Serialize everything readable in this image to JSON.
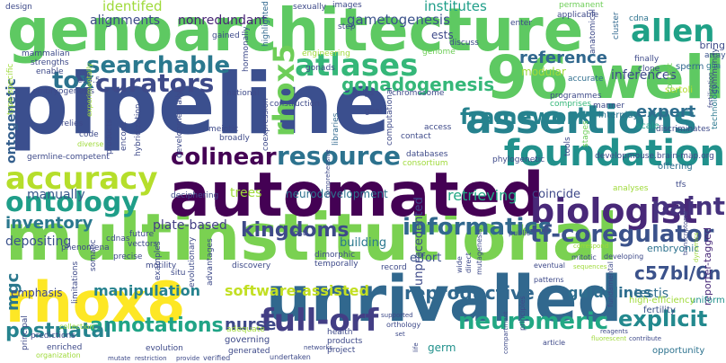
{
  "words": [
    {
      "text": "pipeline",
      "color": "#3b4f8e"
    },
    {
      "text": "multinstitutional",
      "color": "#7ad151"
    },
    {
      "text": "genoarchitecture",
      "color": "#5ec962"
    },
    {
      "text": "automated",
      "color": "#440154"
    },
    {
      "text": "unrivalled",
      "color": "#31688e"
    },
    {
      "text": "96 well",
      "color": "#5ec962"
    },
    {
      "text": "rhox8",
      "color": "#fde725"
    },
    {
      "text": "assertions",
      "color": "#26828e"
    },
    {
      "text": "foundation",
      "color": "#21918c"
    },
    {
      "text": "accuracy",
      "color": "#b5de2b"
    },
    {
      "text": "ontology",
      "color": "#1f9e89"
    },
    {
      "text": "biologist",
      "color": "#482878"
    },
    {
      "text": "allen",
      "color": "#1fa187"
    },
    {
      "text": "atlases",
      "color": "#35b779"
    },
    {
      "text": "searchable",
      "color": "#2a788e"
    },
    {
      "text": "curators",
      "color": "#3e4a89"
    },
    {
      "text": "rhox5",
      "color": "#6ece58"
    },
    {
      "text": "tox",
      "color": "#2c728e"
    },
    {
      "text": "resource",
      "color": "#2c728e"
    },
    {
      "text": "framework",
      "color": "#26828e"
    },
    {
      "text": "colinear",
      "color": "#440154"
    },
    {
      "text": "paint",
      "color": "#46327e"
    },
    {
      "text": "kingdoms",
      "color": "#3e4a89"
    },
    {
      "text": "informatics",
      "color": "#31688e"
    },
    {
      "text": "tf-coregulator",
      "color": "#3b528b"
    },
    {
      "text": "full-orf",
      "color": "#433e85"
    },
    {
      "text": "neuromeric",
      "color": "#22a884"
    },
    {
      "text": "explicit",
      "color": "#23898e"
    },
    {
      "text": "annotations",
      "color": "#20a486"
    },
    {
      "text": "nurse",
      "color": "#3e4989"
    },
    {
      "text": "postnatal",
      "color": "#25838e"
    },
    {
      "text": "manipulation",
      "color": "#26828e"
    },
    {
      "text": "software-assisted",
      "color": "#c2df23"
    },
    {
      "text": "mgc",
      "color": "#2a788e"
    },
    {
      "text": "reproductive",
      "color": "#31688e"
    },
    {
      "text": "guidelines",
      "color": "#2e6e8e"
    },
    {
      "text": "c57bl/6n",
      "color": "#3b528b"
    },
    {
      "text": "identifed",
      "color": "#9fda3a"
    },
    {
      "text": "alignments",
      "color": "#3e4a89"
    },
    {
      "text": "nonredundant",
      "color": "#482475"
    },
    {
      "text": "gametogenesis",
      "color": "#3b528b"
    },
    {
      "text": "institutes",
      "color": "#1f9e89"
    },
    {
      "text": "gonadogenesis",
      "color": "#35b779"
    },
    {
      "text": "reference",
      "color": "#31688e"
    },
    {
      "text": "inferences",
      "color": "#3e4a89"
    },
    {
      "text": "expert",
      "color": "#2e6e8e"
    },
    {
      "text": "ontogenetic",
      "color": "#355f8d"
    },
    {
      "text": "manually",
      "color": "#38598c"
    },
    {
      "text": "inventory",
      "color": "#2a788e"
    },
    {
      "text": "depositing",
      "color": "#3b528b"
    },
    {
      "text": "plate-based",
      "color": "#433e85"
    },
    {
      "text": "retrieving",
      "color": "#22a884"
    },
    {
      "text": "coincide",
      "color": "#3e4989"
    },
    {
      "text": "trees",
      "color": "#9fda3a"
    },
    {
      "text": "neurodevelopment",
      "color": "#2c728e"
    },
    {
      "text": "unprecedented",
      "color": "#3e4a89"
    },
    {
      "text": "building",
      "color": "#2a788e"
    },
    {
      "text": "effort",
      "color": "#3b528b"
    },
    {
      "text": "emphasis",
      "color": "#3e4989"
    },
    {
      "text": "testis",
      "color": "#2e6e8e"
    },
    {
      "text": "modular",
      "color": "#9fda3a"
    },
    {
      "text": "ests",
      "color": "#3e4a89"
    },
    {
      "text": "germ",
      "color": "#21918c"
    },
    {
      "text": "embryonic",
      "color": "#2c728e"
    },
    {
      "text": "reporter-tagged",
      "color": "#482878"
    },
    {
      "text": "uniform",
      "color": "#21918c"
    },
    {
      "text": "fertility",
      "color": "#3b528b"
    },
    {
      "text": "high-efficiency",
      "color": "#9fda3a"
    },
    {
      "text": "opportunity",
      "color": "#2c728e"
    },
    {
      "text": "bring",
      "color": "#3e4a89"
    },
    {
      "text": "array",
      "color": "#3b528b"
    },
    {
      "text": "glia",
      "color": "#2c728e"
    },
    {
      "text": "sperm",
      "color": "#31688e"
    },
    {
      "text": "sertoli",
      "color": "#b5de2b"
    },
    {
      "text": "technology",
      "color": "#2a788e"
    },
    {
      "text": "community",
      "color": "#3e4a89"
    },
    {
      "text": "developmouse.brain-map.org",
      "color": "#3e4a89"
    },
    {
      "text": "offering",
      "color": "#2e6e8e"
    },
    {
      "text": "discriminates",
      "color": "#3e4a89"
    },
    {
      "text": "interplay",
      "color": "#2c728e"
    },
    {
      "text": "scale",
      "color": "#1f9e89"
    },
    {
      "text": "programmes",
      "color": "#3e4a89"
    },
    {
      "text": "comprises",
      "color": "#35b779"
    },
    {
      "text": "accurate",
      "color": "#2e6e8e"
    },
    {
      "text": "finally",
      "color": "#3e4a89"
    },
    {
      "text": "cluster",
      "color": "#31688e"
    },
    {
      "text": "clone",
      "color": "#3e4a89"
    },
    {
      "text": "context",
      "color": "#6ece58"
    },
    {
      "text": "anatomical",
      "color": "#3e4a89"
    },
    {
      "text": "cdna",
      "color": "#2c728e"
    },
    {
      "text": "applicable",
      "color": "#3e4a89"
    },
    {
      "text": "permanent",
      "color": "#6ece58"
    },
    {
      "text": "enter",
      "color": "#3e4a89"
    },
    {
      "text": "discuss",
      "color": "#3e4a89"
    },
    {
      "text": "genome",
      "color": "#6ece58"
    },
    {
      "text": "step",
      "color": "#3e4a89"
    },
    {
      "text": "sexually",
      "color": "#3e4a89"
    },
    {
      "text": "images",
      "color": "#3e4a89"
    },
    {
      "text": "highlighted",
      "color": "#31688e"
    },
    {
      "text": "gained",
      "color": "#3e4a89"
    },
    {
      "text": "hormonally",
      "color": "#3e4a89"
    },
    {
      "text": "gonads",
      "color": "#3e4a89"
    },
    {
      "text": "engineering",
      "color": "#9fda3a"
    },
    {
      "text": "national",
      "color": "#3e4a89"
    },
    {
      "text": "construction",
      "color": "#3e4a89"
    },
    {
      "text": "helps",
      "color": "#3e4a89"
    },
    {
      "text": "chromosome",
      "color": "#3e4a89"
    },
    {
      "text": "goal",
      "color": "#3e4a89"
    },
    {
      "text": "libraries",
      "color": "#31688e"
    },
    {
      "text": "computational",
      "color": "#3e4a89"
    },
    {
      "text": "access",
      "color": "#3e4a89"
    },
    {
      "text": "contact",
      "color": "#3e4a89"
    },
    {
      "text": "databases",
      "color": "#3e4a89"
    },
    {
      "text": "consortium",
      "color": "#9fda3a"
    },
    {
      "text": "phylogenetic",
      "color": "#3e4a89"
    },
    {
      "text": "tools",
      "color": "#3e4a89"
    },
    {
      "text": "stages",
      "color": "#6ece58"
    },
    {
      "text": "manner",
      "color": "#3e4a89"
    },
    {
      "text": "deciphering",
      "color": "#3e4a89"
    },
    {
      "text": "analyses",
      "color": "#9fda3a"
    },
    {
      "text": "tfs",
      "color": "#3e4a89"
    },
    {
      "text": "design",
      "color": "#3e4a89"
    },
    {
      "text": "mammalian",
      "color": "#3e4a89"
    },
    {
      "text": "strengths",
      "color": "#3e4a89"
    },
    {
      "text": "enable",
      "color": "#3e4a89"
    },
    {
      "text": "embryogenesis",
      "color": "#3e4a89"
    },
    {
      "text": "e13.5",
      "color": "#3e4a89"
    },
    {
      "text": "type-specific",
      "color": "#9fda3a"
    },
    {
      "text": "relies",
      "color": "#3e4a89"
    },
    {
      "text": "code",
      "color": "#3e4a89"
    },
    {
      "text": "germline-competent",
      "color": "#3e4a89"
    },
    {
      "text": "diverse",
      "color": "#9fda3a"
    },
    {
      "text": "products",
      "color": "#3e4a89"
    },
    {
      "text": "encode",
      "color": "#3e4a89"
    },
    {
      "text": "hybridization",
      "color": "#3e4a89"
    },
    {
      "text": "meiotic",
      "color": "#3e4a89"
    },
    {
      "text": "developmentally",
      "color": "#3e4a89"
    },
    {
      "text": "broadly",
      "color": "#3e4a89"
    },
    {
      "text": "coexpression",
      "color": "#3e4a89"
    },
    {
      "text": "experimentally",
      "color": "#9fda3a"
    },
    {
      "text": "phenomena",
      "color": "#3e4a89"
    },
    {
      "text": "cdnas",
      "color": "#3e4a89"
    },
    {
      "text": "vectors",
      "color": "#3e4a89"
    },
    {
      "text": "future",
      "color": "#3e4a89"
    },
    {
      "text": "somatic",
      "color": "#3e4a89"
    },
    {
      "text": "limitations",
      "color": "#3e4a89"
    },
    {
      "text": "precise",
      "color": "#3e4a89"
    },
    {
      "text": "motility",
      "color": "#3e4a89"
    },
    {
      "text": "examples",
      "color": "#3e4a89"
    },
    {
      "text": "situ",
      "color": "#3e4a89"
    },
    {
      "text": "evolutionary",
      "color": "#3e4a89"
    },
    {
      "text": "advantages",
      "color": "#3e4a89"
    },
    {
      "text": "principal",
      "color": "#3e4a89"
    },
    {
      "text": "predictions",
      "color": "#3e4a89"
    },
    {
      "text": "enriched",
      "color": "#3e4a89"
    },
    {
      "text": "collection",
      "color": "#9fda3a"
    },
    {
      "text": "organization",
      "color": "#9fda3a"
    },
    {
      "text": "evolution",
      "color": "#3e4a89"
    },
    {
      "text": "governing",
      "color": "#3e4a89"
    },
    {
      "text": "generated",
      "color": "#3e4a89"
    },
    {
      "text": "adequate",
      "color": "#9fda3a"
    },
    {
      "text": "health",
      "color": "#3e4a89"
    },
    {
      "text": "products",
      "color": "#3e4a89"
    },
    {
      "text": "project",
      "color": "#3e4a89"
    },
    {
      "text": "record",
      "color": "#3e4a89"
    },
    {
      "text": "temporally",
      "color": "#3e4a89"
    },
    {
      "text": "discovery",
      "color": "#3e4a89"
    },
    {
      "text": "dimorphic",
      "color": "#3e4a89"
    },
    {
      "text": "lost",
      "color": "#3e4a89"
    },
    {
      "text": "mutate",
      "color": "#3e4a89"
    },
    {
      "text": "restriction",
      "color": "#3e4a89"
    },
    {
      "text": "provide",
      "color": "#3e4a89"
    },
    {
      "text": "verified",
      "color": "#3e4a89"
    },
    {
      "text": "undertaken",
      "color": "#3e4a89"
    },
    {
      "text": "networks",
      "color": "#3e4a89"
    },
    {
      "text": "supported",
      "color": "#3e4a89"
    },
    {
      "text": "orthology",
      "color": "#3e4a89"
    },
    {
      "text": "set",
      "color": "#3e4a89"
    },
    {
      "text": "life",
      "color": "#3e4a89"
    },
    {
      "text": "wide",
      "color": "#3e4a89"
    },
    {
      "text": "direct",
      "color": "#3e4a89"
    },
    {
      "text": "mutagenesis",
      "color": "#3e4a89"
    },
    {
      "text": "public",
      "color": "#3e4a89"
    },
    {
      "text": "compartment",
      "color": "#3e4a89"
    },
    {
      "text": "principles",
      "color": "#3e4a89"
    },
    {
      "text": "article",
      "color": "#3e4a89"
    },
    {
      "text": "patterns",
      "color": "#3e4a89"
    },
    {
      "text": "eventual",
      "color": "#3e4a89"
    },
    {
      "text": "sequences",
      "color": "#9fda3a"
    },
    {
      "text": "mitotic",
      "color": "#3e4a89"
    },
    {
      "text": "developing",
      "color": "#3e4a89"
    },
    {
      "text": "correspond",
      "color": "#9fda3a"
    },
    {
      "text": "fundamental",
      "color": "#3e4a89"
    },
    {
      "text": "transcriptome",
      "color": "#3e4a89"
    },
    {
      "text": "dynamics",
      "color": "#9fda3a"
    },
    {
      "text": "comprehensive",
      "color": "#3e4a89"
    },
    {
      "text": "fluorescent",
      "color": "#9fda3a"
    },
    {
      "text": "reagents",
      "color": "#3e4a89"
    },
    {
      "text": "contribute",
      "color": "#3e4a89"
    },
    {
      "text": "fertilization",
      "color": "#3e4a89"
    }
  ]
}
